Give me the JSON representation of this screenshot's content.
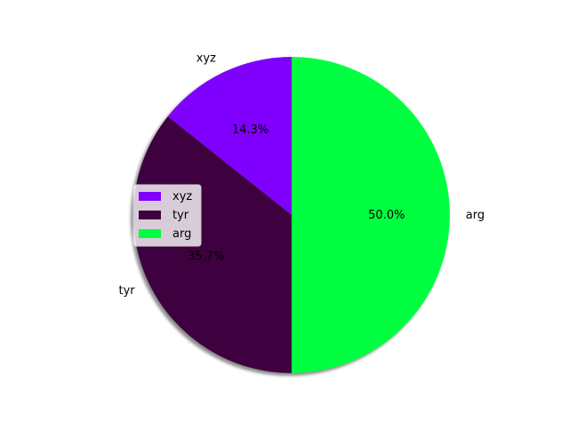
{
  "chart_data": {
    "type": "pie",
    "title": "",
    "slices": [
      {
        "label": "xyz",
        "percent_label": "14.3%",
        "value": 14.3,
        "color": "#7f00ff"
      },
      {
        "label": "tyr",
        "percent_label": "35.7%",
        "value": 35.7,
        "color": "#3f003f"
      },
      {
        "label": "arg",
        "percent_label": "50.0%",
        "value": 50.0,
        "color": "#00ff40"
      }
    ],
    "start_angle_deg": 90,
    "direction": "counterclockwise",
    "shadow": true,
    "legend": {
      "placement": "center-left",
      "entries": [
        "xyz",
        "tyr",
        "arg"
      ]
    }
  }
}
